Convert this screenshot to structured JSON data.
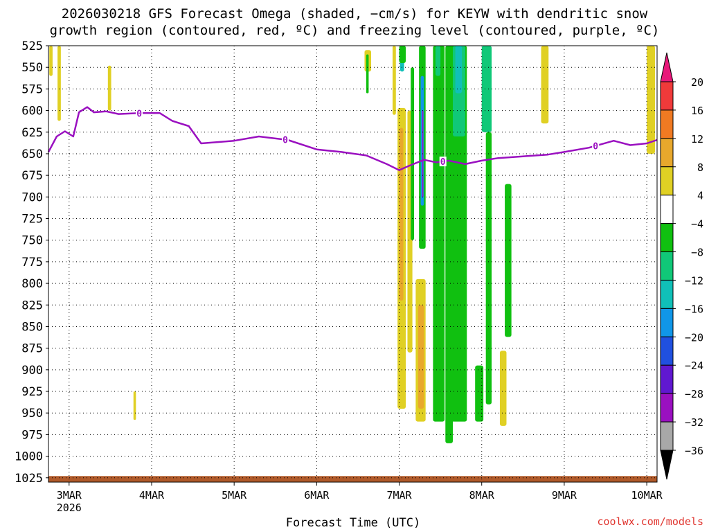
{
  "title_line1": "2026030218 GFS Forecast Omega (shaded, −cm/s) for KEYW with dendritic snow",
  "title_line2": "growth region (contoured, red, ºC) and freezing level (contoured, purple, ºC)",
  "xlabel": "Forecast Time (UTC)",
  "credit": "coolwx.com/models",
  "chart_data": {
    "type": "heatmap",
    "title": "2026030218 GFS Forecast Omega (shaded, −cm/s) for KEYW with dendritic snow growth region (contoured, red, ºC) and freezing level (contoured, purple, ºC)",
    "xlabel": "Forecast Time (UTC)",
    "ylabel": "",
    "y_levels": [
      525,
      550,
      575,
      600,
      625,
      650,
      675,
      700,
      725,
      750,
      775,
      800,
      825,
      850,
      875,
      900,
      925,
      950,
      975,
      1000,
      1025
    ],
    "y_tick_labels": [
      "525",
      "550",
      "575",
      "600",
      "625",
      "650",
      "675",
      "700",
      "725",
      "750",
      "775",
      "800",
      "825",
      "850",
      "875",
      "900",
      "925",
      "950",
      "975",
      "1000",
      "1025"
    ],
    "x_ticks": [
      {
        "label": "3MAR",
        "sub": "2026",
        "day": 3
      },
      {
        "label": "4MAR",
        "sub": "",
        "day": 4
      },
      {
        "label": "5MAR",
        "sub": "",
        "day": 5
      },
      {
        "label": "6MAR",
        "sub": "",
        "day": 6
      },
      {
        "label": "7MAR",
        "sub": "",
        "day": 7
      },
      {
        "label": "8MAR",
        "sub": "",
        "day": 8
      },
      {
        "label": "9MAR",
        "sub": "",
        "day": 9
      },
      {
        "label": "10MAR",
        "sub": "",
        "day": 10
      }
    ],
    "x_range_days": [
      2.75,
      10.125
    ],
    "y_range": [
      525,
      1030
    ],
    "grid": true,
    "colorbar": {
      "labels": [
        "20",
        "16",
        "12",
        "8",
        "4",
        "−4",
        "−8",
        "−12",
        "−16",
        "−20",
        "−24",
        "−28",
        "−32",
        "−36"
      ],
      "colors": [
        "#e8187a",
        "#f03a3a",
        "#f07a22",
        "#e8a82c",
        "#e0d024",
        "#ffffff",
        "#10c010",
        "#10c878",
        "#10c0b8",
        "#1096e8",
        "#2050e0",
        "#6018d0",
        "#9a10c0",
        "#a8a8a8",
        "#000000"
      ]
    },
    "freezing_level": {
      "label": "0",
      "color": "#9a10c0",
      "points": [
        [
          2.75,
          648
        ],
        [
          2.85,
          630
        ],
        [
          2.95,
          624
        ],
        [
          3.05,
          630
        ],
        [
          3.12,
          602
        ],
        [
          3.22,
          596
        ],
        [
          3.3,
          602
        ],
        [
          3.45,
          601
        ],
        [
          3.6,
          604
        ],
        [
          3.85,
          603
        ],
        [
          4.1,
          603
        ],
        [
          4.25,
          612
        ],
        [
          4.45,
          618
        ],
        [
          4.6,
          638
        ],
        [
          5.0,
          635
        ],
        [
          5.3,
          630
        ],
        [
          5.65,
          634
        ],
        [
          6.0,
          645
        ],
        [
          6.3,
          648
        ],
        [
          6.6,
          652
        ],
        [
          6.85,
          662
        ],
        [
          7.0,
          669
        ],
        [
          7.12,
          664
        ],
        [
          7.3,
          657
        ],
        [
          7.45,
          660
        ],
        [
          7.6,
          658
        ],
        [
          7.8,
          662
        ],
        [
          8.0,
          658
        ],
        [
          8.2,
          655
        ],
        [
          8.5,
          653
        ],
        [
          8.8,
          651
        ],
        [
          9.0,
          648
        ],
        [
          9.3,
          643
        ],
        [
          9.6,
          635
        ],
        [
          9.8,
          640
        ],
        [
          10.0,
          638
        ],
        [
          10.125,
          634
        ]
      ],
      "label_days": [
        3.85,
        5.62,
        7.53,
        9.38
      ]
    },
    "shaded": [
      {
        "value": 6,
        "x0": 2.76,
        "x1": 2.8,
        "p0": 525,
        "p1": 560
      },
      {
        "value": 6,
        "x0": 2.86,
        "x1": 2.9,
        "p0": 525,
        "p1": 612
      },
      {
        "value": 6,
        "x0": 3.47,
        "x1": 3.51,
        "p0": 548,
        "p1": 600
      },
      {
        "value": 6,
        "x0": 3.78,
        "x1": 3.81,
        "p0": 925,
        "p1": 958
      },
      {
        "value": 6,
        "x0": 10.0,
        "x1": 10.1,
        "p0": 525,
        "p1": 650
      },
      {
        "value": 6,
        "x0": 6.58,
        "x1": 6.66,
        "p0": 530,
        "p1": 555
      },
      {
        "value": -6,
        "x0": 6.6,
        "x1": 6.63,
        "p0": 535,
        "p1": 580
      },
      {
        "value": 6,
        "x0": 6.92,
        "x1": 6.96,
        "p0": 525,
        "p1": 605
      },
      {
        "value": 6,
        "x0": 6.98,
        "x1": 7.08,
        "p0": 597,
        "p1": 945
      },
      {
        "value": 10,
        "x0": 7.0,
        "x1": 7.05,
        "p0": 620,
        "p1": 820
      },
      {
        "value": 6,
        "x0": 7.1,
        "x1": 7.16,
        "p0": 600,
        "p1": 880
      },
      {
        "value": 6,
        "x0": 7.2,
        "x1": 7.32,
        "p0": 795,
        "p1": 960
      },
      {
        "value": 10,
        "x0": 7.23,
        "x1": 7.3,
        "p0": 825,
        "p1": 945
      },
      {
        "value": -14,
        "x0": 7.01,
        "x1": 7.06,
        "p0": 525,
        "p1": 555
      },
      {
        "value": -6,
        "x0": 7.0,
        "x1": 7.08,
        "p0": 525,
        "p1": 545
      },
      {
        "value": -6,
        "x0": 7.14,
        "x1": 7.18,
        "p0": 550,
        "p1": 750
      },
      {
        "value": -6,
        "x0": 7.24,
        "x1": 7.32,
        "p0": 525,
        "p1": 760
      },
      {
        "value": -18,
        "x0": 7.26,
        "x1": 7.3,
        "p0": 560,
        "p1": 710
      },
      {
        "value": -30,
        "x0": 7.28,
        "x1": 7.29,
        "p0": 600,
        "p1": 700
      },
      {
        "value": -6,
        "x0": 7.41,
        "x1": 7.55,
        "p0": 525,
        "p1": 960
      },
      {
        "value": -10,
        "x0": 7.44,
        "x1": 7.5,
        "p0": 525,
        "p1": 560
      },
      {
        "value": -6,
        "x0": 7.56,
        "x1": 7.65,
        "p0": 525,
        "p1": 985
      },
      {
        "value": -6,
        "x0": 7.63,
        "x1": 7.82,
        "p0": 525,
        "p1": 960
      },
      {
        "value": -10,
        "x0": 7.65,
        "x1": 7.8,
        "p0": 525,
        "p1": 630
      },
      {
        "value": -14,
        "x0": 7.68,
        "x1": 7.76,
        "p0": 525,
        "p1": 580
      },
      {
        "value": -6,
        "x0": 7.92,
        "x1": 8.02,
        "p0": 895,
        "p1": 960
      },
      {
        "value": -10,
        "x0": 8.0,
        "x1": 8.12,
        "p0": 525,
        "p1": 625
      },
      {
        "value": -6,
        "x0": 8.05,
        "x1": 8.12,
        "p0": 625,
        "p1": 940
      },
      {
        "value": -6,
        "x0": 8.28,
        "x1": 8.36,
        "p0": 685,
        "p1": 862
      },
      {
        "value": 6,
        "x0": 8.22,
        "x1": 8.3,
        "p0": 878,
        "p1": 965
      },
      {
        "value": 6,
        "x0": 8.72,
        "x1": 8.81,
        "p0": 525,
        "p1": 615
      }
    ],
    "terrain_color": "#b05a2a"
  }
}
